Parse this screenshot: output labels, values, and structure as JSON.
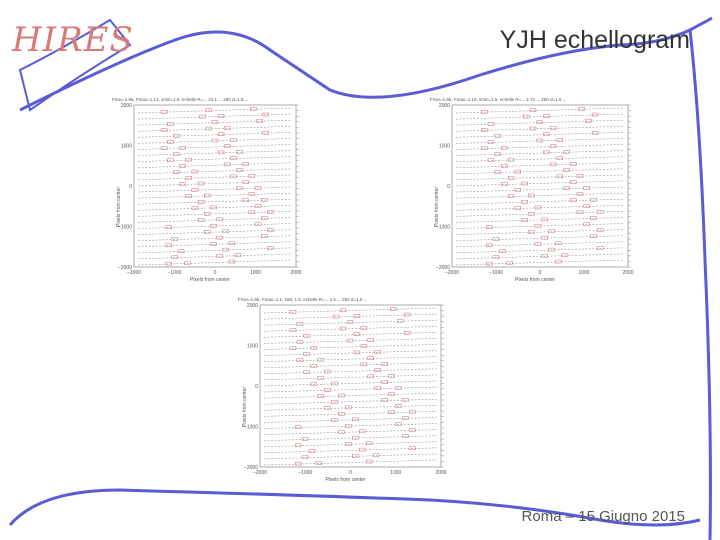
{
  "slide": {
    "logo_text": "HIRES",
    "title": "YJH echellogram",
    "footer": "Roma – 15 Giugno 2015"
  },
  "plots": [
    {
      "header": "Fmin=1.96, Fmax=1.13, vmin=1.5, echelle R=... 24.1 ... 250 d=1.6 ...",
      "xlabel": "Pixels from center",
      "ylabel": "Pixels from center",
      "xticks": [
        "−2000",
        "−1000",
        "0",
        "1000",
        "2000"
      ],
      "yticks": [
        "2000",
        "1000",
        "0",
        "−1000",
        "−2000"
      ]
    },
    {
      "header": "Fmin=1.96, Fmax=1.16, vmin=1.5, echelle R=... 2.72 ... 250 d=1.6 ...",
      "xlabel": "Pixels from center",
      "ylabel": "Pixels from center",
      "xticks": [
        "−2000",
        "−1000",
        "0",
        "1000",
        "2000"
      ],
      "yticks": [
        "2000",
        "1000",
        "0",
        "−1000",
        "−2000"
      ]
    },
    {
      "header": "Fmin=1.96, Fmax=1.1, 168, 1.5, echelle R=... 1.5 ... 250 d=1.6 ...",
      "xlabel": "Pixels from center",
      "ylabel": "Pixels from center",
      "xticks": [
        "−2000",
        "−1000",
        "0",
        "1000",
        "2000"
      ],
      "yticks": [
        "2000",
        "1000",
        "0",
        "−1000",
        "−2000"
      ]
    }
  ],
  "colors": {
    "decor_line": "#5b5bd6",
    "logo": "#d97a7a",
    "title": "#333333",
    "footer": "#555555",
    "order_line": "#888888",
    "marker": "#c05050"
  }
}
